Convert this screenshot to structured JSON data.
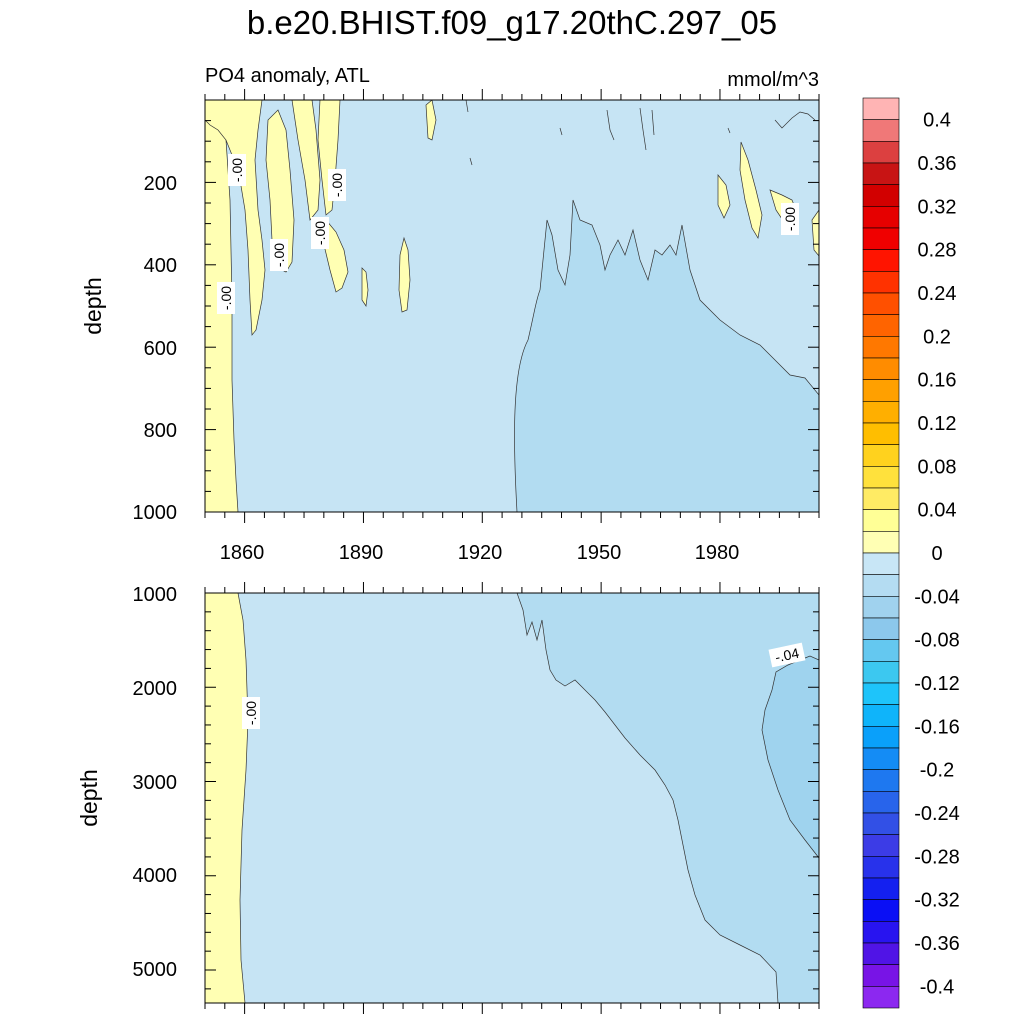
{
  "page": {
    "title": "b.e20.BHIST.f09_g17.20thC.297_05"
  },
  "chart_data": [
    {
      "type": "heatmap",
      "panel": "upper",
      "title": "PO4 anomaly, ATL",
      "units": "mmol/m^3",
      "xlabel": "",
      "ylabel": "depth",
      "xlim": [
        1850,
        2005
      ],
      "ylim": [
        1000,
        0
      ],
      "y_inverted": true,
      "x_ticks": [
        1860,
        1890,
        1920,
        1950,
        1980
      ],
      "y_ticks": [
        200,
        400,
        600,
        800,
        1000
      ],
      "contour_labels": [
        "-.00",
        "-.00",
        "-.00",
        "-.00",
        "-.00",
        "-.00"
      ],
      "regions": [
        {
          "range": "0 to 0.02",
          "color": "#ffffb3",
          "desc": "positive strip along left edge and patches near surface 1850-1905 and 1980-2005"
        },
        {
          "range": "-0.02 to 0",
          "color": "#c6e4f4",
          "desc": "background"
        },
        {
          "range": "-0.04 to -0.02",
          "color": "#b2dcf1",
          "desc": "deep region after 1929"
        }
      ]
    },
    {
      "type": "heatmap",
      "panel": "lower",
      "title": "",
      "xlabel": "",
      "ylabel": "depth",
      "xlim": [
        1850,
        2005
      ],
      "ylim": [
        5350,
        1000
      ],
      "y_inverted": true,
      "y_ticks": [
        1000,
        2000,
        3000,
        4000,
        5000
      ],
      "contour_labels": [
        "-.00",
        "-.04"
      ],
      "regions": [
        {
          "range": "0 to 0.02",
          "color": "#ffffb3",
          "desc": "left edge strip"
        },
        {
          "range": "-0.02 to 0",
          "color": "#c6e4f4",
          "desc": "background"
        },
        {
          "range": "-0.04 to -0.02",
          "color": "#b2dcf1",
          "desc": "wedge widening with depth after 1930"
        },
        {
          "range": "-0.06 to -0.04",
          "color": "#9fd3ee",
          "desc": "patch at right edge 2000-4000 m"
        }
      ]
    }
  ],
  "colorbar": {
    "levels": [
      "0.4",
      "0.36",
      "0.32",
      "0.28",
      "0.24",
      "0.2",
      "0.16",
      "0.12",
      "0.08",
      "0.04",
      "0",
      "-0.04",
      "-0.08",
      "-0.12",
      "-0.16",
      "-0.2",
      "-0.24",
      "-0.28",
      "-0.32",
      "-0.36",
      "-0.4"
    ],
    "colors": [
      "#ffb4b4",
      "#f07878",
      "#dc4040",
      "#c81414",
      "#d20000",
      "#e60000",
      "#f00000",
      "#ff1400",
      "#ff3200",
      "#ff5000",
      "#ff6400",
      "#ff7800",
      "#ff8c00",
      "#ffa000",
      "#ffaf00",
      "#ffbe00",
      "#ffd21e",
      "#ffe13c",
      "#ffeb64",
      "#ffff96",
      "#ffffb4",
      "#c8e6f6",
      "#b4dcf2",
      "#a0d2ee",
      "#8cc8ec",
      "#64c8f0",
      "#3cc8f0",
      "#1ec4fa",
      "#0fb4fa",
      "#0aa0fa",
      "#148cf5",
      "#1e78f0",
      "#2864eb",
      "#3250e6",
      "#3c3ce6",
      "#2832eb",
      "#1420f0",
      "#0a0ff5",
      "#2814f0",
      "#5014e6",
      "#7814e6",
      "#8c28f0"
    ]
  }
}
